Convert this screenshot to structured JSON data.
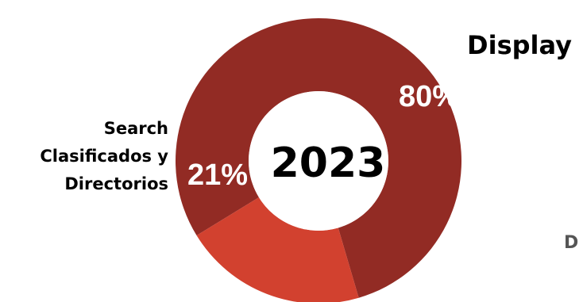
{
  "chart_data": {
    "type": "pie",
    "center_label": "2023",
    "slices": [
      {
        "label": "Display",
        "value": 80,
        "display_value": "80%",
        "color": "#922b24"
      },
      {
        "label": "Search Clasificados y Directorios",
        "label_lines": [
          "Search",
          "Clasificados y",
          "Directorios"
        ],
        "value": 21,
        "display_value": "21%",
        "color": "#d2412f"
      }
    ],
    "extra_text": "D"
  }
}
